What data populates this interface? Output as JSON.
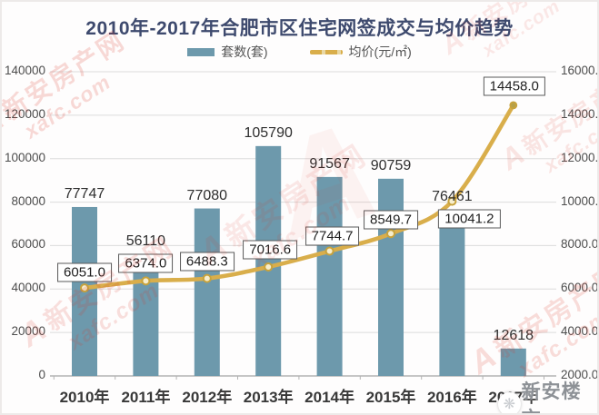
{
  "title": "2010年-2017年合肥市区住宅网签成交与均价趋势",
  "watermarks": {
    "red_logo_glyph": "A",
    "red_text_cn": "新安房产网",
    "red_text_en": "xafc.com",
    "red_color": "#dd3527",
    "corner_brand": "新安楼市",
    "corner_brand_color": "#8d9196"
  },
  "chart_data": {
    "type": "bar+line combo",
    "title": "2010年-2017年合肥市区住宅网签成交与均价趋势",
    "categories": [
      "2010年",
      "2011年",
      "2012年",
      "2013年",
      "2014年",
      "2015年",
      "2016年",
      "2017年"
    ],
    "series": [
      {
        "name": "套数(套)",
        "type": "bar",
        "axis": "left",
        "color": "#6d99ac",
        "values": [
          77747,
          56110,
          77080,
          105790,
          91567,
          90759,
          76461,
          12618
        ],
        "labels": [
          "77747",
          "56110",
          "77080",
          "105790",
          "91567",
          "90759",
          "76461",
          "12618"
        ]
      },
      {
        "name": "均价(元/㎡)",
        "type": "line",
        "axis": "right",
        "color": "#d9ae4b",
        "values": [
          6051.0,
          6374.0,
          6488.3,
          7016.6,
          7744.7,
          8549.7,
          10041.2,
          14458.0
        ],
        "labels": [
          "6051.0",
          "6374.0",
          "6488.3",
          "7016.6",
          "7744.7",
          "8549.7",
          "10041.2",
          "14458.0"
        ]
      }
    ],
    "left_axis": {
      "min": 0,
      "max": 140000,
      "step": 20000,
      "tick_labels": [
        "0",
        "20000",
        "40000",
        "60000",
        "80000",
        "100000",
        "120000",
        "140000"
      ]
    },
    "right_axis": {
      "min": 2000,
      "max": 16000,
      "step": 2000,
      "tick_labels": [
        "2000.0",
        "4000.0",
        "6000.0",
        "8000.0",
        "10000.0",
        "12000.0",
        "14000.0",
        "16000.0"
      ]
    },
    "grid": true,
    "legend_position": "top"
  }
}
